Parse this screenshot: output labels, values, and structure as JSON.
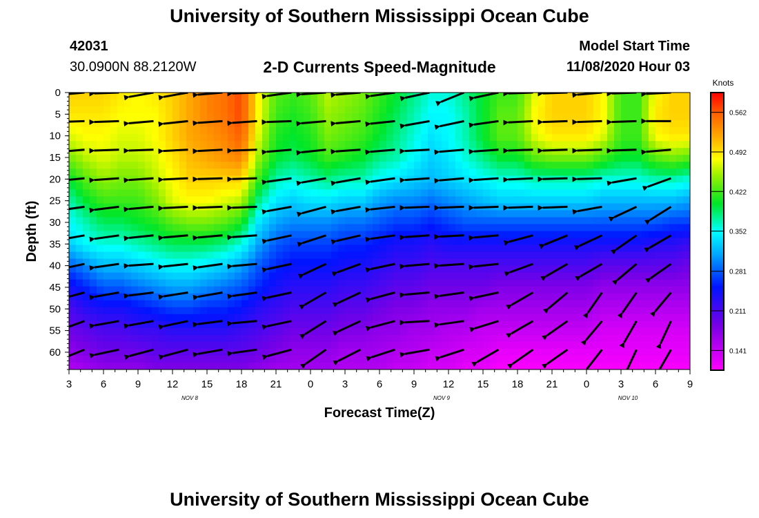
{
  "header": {
    "title": "University of Southern Mississippi Ocean Cube",
    "station_id": "42031",
    "location": "30.0900N 88.2120W",
    "model_start_label": "Model Start Time",
    "model_start_value": "11/08/2020 Hour 03"
  },
  "footer": {
    "title": "University of Southern Mississippi Ocean Cube"
  },
  "chart_data": {
    "type": "heatmap",
    "title": "2-D Currents Speed-Magnitude",
    "xlabel": "Forecast Time(Z)",
    "ylabel": "Depth (ft)",
    "x_tick_labels": [
      "3",
      "6",
      "9",
      "12",
      "15",
      "18",
      "21",
      "0",
      "3",
      "6",
      "9",
      "12",
      "15",
      "18",
      "21",
      "0",
      "3",
      "6",
      "9"
    ],
    "day_labels": [
      {
        "label": "NOV 8",
        "after_tick": 3.5
      },
      {
        "label": "NOV 9",
        "after_tick": 10.8
      },
      {
        "label": "NOV 10",
        "after_tick": 16.2
      }
    ],
    "y_ticks": [
      0,
      5,
      10,
      15,
      20,
      25,
      30,
      35,
      40,
      45,
      50,
      55,
      60
    ],
    "ylim": [
      0,
      64
    ],
    "colorbar": {
      "unit": "Knots",
      "min": 0.106,
      "max": 0.597,
      "tick_values": [
        0.141,
        0.211,
        0.281,
        0.352,
        0.422,
        0.492,
        0.562
      ]
    },
    "depth_rows_ft": [
      0,
      5,
      10,
      15,
      20,
      25,
      30,
      35,
      40,
      45,
      50,
      55,
      60,
      64
    ],
    "time_columns_tick_index": [
      0,
      0.5,
      1,
      1.5,
      2,
      2.5,
      3,
      3.5,
      4,
      4.5,
      5,
      5.5,
      6,
      6.5,
      7,
      7.5,
      8,
      8.5,
      9,
      9.5,
      10,
      10.5,
      11,
      11.5,
      12,
      12.5,
      13,
      13.5,
      14,
      14.5,
      15,
      15.5,
      16,
      16.5,
      17,
      17.5,
      18
    ],
    "speed_knots_grid": [
      [
        0.5,
        0.5,
        0.5,
        0.49,
        0.48,
        0.49,
        0.5,
        0.52,
        0.54,
        0.55,
        0.57,
        0.48,
        0.43,
        0.42,
        0.43,
        0.46,
        0.45,
        0.44,
        0.42,
        0.4,
        0.38,
        0.36,
        0.36,
        0.38,
        0.4,
        0.42,
        0.42,
        0.47,
        0.5,
        0.5,
        0.5,
        0.48,
        0.42,
        0.42,
        0.48,
        0.5,
        0.5
      ],
      [
        0.49,
        0.49,
        0.49,
        0.48,
        0.48,
        0.48,
        0.5,
        0.52,
        0.54,
        0.55,
        0.57,
        0.48,
        0.42,
        0.41,
        0.42,
        0.45,
        0.44,
        0.43,
        0.41,
        0.39,
        0.37,
        0.35,
        0.35,
        0.37,
        0.4,
        0.43,
        0.43,
        0.48,
        0.5,
        0.5,
        0.5,
        0.48,
        0.42,
        0.42,
        0.49,
        0.5,
        0.5
      ],
      [
        0.47,
        0.48,
        0.48,
        0.47,
        0.47,
        0.48,
        0.5,
        0.52,
        0.53,
        0.54,
        0.56,
        0.47,
        0.41,
        0.4,
        0.41,
        0.44,
        0.43,
        0.42,
        0.4,
        0.38,
        0.36,
        0.34,
        0.35,
        0.37,
        0.4,
        0.43,
        0.43,
        0.47,
        0.49,
        0.49,
        0.49,
        0.47,
        0.42,
        0.42,
        0.48,
        0.49,
        0.49
      ],
      [
        0.44,
        0.46,
        0.47,
        0.46,
        0.46,
        0.47,
        0.49,
        0.51,
        0.52,
        0.53,
        0.54,
        0.45,
        0.4,
        0.39,
        0.4,
        0.42,
        0.41,
        0.4,
        0.38,
        0.37,
        0.35,
        0.33,
        0.34,
        0.36,
        0.38,
        0.4,
        0.4,
        0.43,
        0.44,
        0.44,
        0.44,
        0.42,
        0.4,
        0.4,
        0.43,
        0.44,
        0.43
      ],
      [
        0.4,
        0.43,
        0.45,
        0.44,
        0.44,
        0.46,
        0.48,
        0.5,
        0.5,
        0.5,
        0.5,
        0.42,
        0.37,
        0.36,
        0.37,
        0.38,
        0.37,
        0.37,
        0.35,
        0.34,
        0.33,
        0.32,
        0.33,
        0.34,
        0.35,
        0.36,
        0.36,
        0.37,
        0.37,
        0.37,
        0.37,
        0.36,
        0.36,
        0.36,
        0.37,
        0.37,
        0.36
      ],
      [
        0.37,
        0.4,
        0.42,
        0.42,
        0.42,
        0.44,
        0.47,
        0.48,
        0.48,
        0.47,
        0.46,
        0.38,
        0.34,
        0.33,
        0.34,
        0.34,
        0.33,
        0.33,
        0.31,
        0.3,
        0.3,
        0.29,
        0.3,
        0.31,
        0.32,
        0.33,
        0.33,
        0.33,
        0.33,
        0.33,
        0.33,
        0.32,
        0.32,
        0.32,
        0.32,
        0.32,
        0.31
      ],
      [
        0.35,
        0.37,
        0.39,
        0.39,
        0.4,
        0.41,
        0.43,
        0.44,
        0.44,
        0.43,
        0.41,
        0.34,
        0.31,
        0.3,
        0.3,
        0.3,
        0.29,
        0.29,
        0.28,
        0.27,
        0.27,
        0.26,
        0.27,
        0.28,
        0.28,
        0.28,
        0.28,
        0.28,
        0.28,
        0.28,
        0.28,
        0.28,
        0.28,
        0.28,
        0.28,
        0.27,
        0.27
      ],
      [
        0.33,
        0.35,
        0.36,
        0.36,
        0.37,
        0.38,
        0.39,
        0.39,
        0.39,
        0.38,
        0.36,
        0.31,
        0.28,
        0.27,
        0.27,
        0.27,
        0.26,
        0.26,
        0.25,
        0.24,
        0.24,
        0.23,
        0.24,
        0.24,
        0.24,
        0.24,
        0.24,
        0.24,
        0.24,
        0.24,
        0.24,
        0.24,
        0.24,
        0.24,
        0.23,
        0.23,
        0.22
      ],
      [
        0.28,
        0.3,
        0.32,
        0.32,
        0.33,
        0.34,
        0.35,
        0.35,
        0.34,
        0.33,
        0.31,
        0.28,
        0.26,
        0.25,
        0.25,
        0.25,
        0.24,
        0.24,
        0.23,
        0.22,
        0.22,
        0.21,
        0.21,
        0.21,
        0.21,
        0.21,
        0.21,
        0.21,
        0.21,
        0.21,
        0.21,
        0.2,
        0.2,
        0.2,
        0.2,
        0.2,
        0.19
      ],
      [
        0.24,
        0.26,
        0.28,
        0.28,
        0.29,
        0.3,
        0.31,
        0.31,
        0.3,
        0.29,
        0.28,
        0.26,
        0.24,
        0.23,
        0.23,
        0.23,
        0.22,
        0.22,
        0.21,
        0.2,
        0.2,
        0.19,
        0.19,
        0.19,
        0.19,
        0.18,
        0.18,
        0.18,
        0.18,
        0.18,
        0.18,
        0.17,
        0.17,
        0.17,
        0.17,
        0.17,
        0.17
      ],
      [
        0.21,
        0.23,
        0.24,
        0.24,
        0.25,
        0.26,
        0.27,
        0.27,
        0.26,
        0.26,
        0.25,
        0.23,
        0.22,
        0.21,
        0.21,
        0.21,
        0.2,
        0.2,
        0.19,
        0.18,
        0.18,
        0.17,
        0.17,
        0.17,
        0.16,
        0.16,
        0.16,
        0.16,
        0.16,
        0.16,
        0.16,
        0.15,
        0.15,
        0.15,
        0.15,
        0.15,
        0.15
      ],
      [
        0.19,
        0.2,
        0.21,
        0.21,
        0.22,
        0.22,
        0.23,
        0.23,
        0.23,
        0.23,
        0.22,
        0.21,
        0.2,
        0.19,
        0.19,
        0.19,
        0.18,
        0.18,
        0.17,
        0.17,
        0.16,
        0.16,
        0.15,
        0.15,
        0.14,
        0.14,
        0.14,
        0.14,
        0.14,
        0.14,
        0.14,
        0.13,
        0.13,
        0.13,
        0.13,
        0.13,
        0.13
      ],
      [
        0.17,
        0.18,
        0.19,
        0.19,
        0.19,
        0.2,
        0.2,
        0.2,
        0.2,
        0.2,
        0.2,
        0.19,
        0.18,
        0.17,
        0.17,
        0.17,
        0.16,
        0.16,
        0.16,
        0.15,
        0.15,
        0.14,
        0.14,
        0.13,
        0.13,
        0.12,
        0.12,
        0.12,
        0.12,
        0.12,
        0.12,
        0.12,
        0.12,
        0.12,
        0.12,
        0.12,
        0.12
      ],
      [
        0.15,
        0.16,
        0.17,
        0.17,
        0.17,
        0.18,
        0.18,
        0.18,
        0.18,
        0.18,
        0.18,
        0.17,
        0.16,
        0.16,
        0.16,
        0.16,
        0.15,
        0.15,
        0.15,
        0.14,
        0.14,
        0.13,
        0.13,
        0.12,
        0.12,
        0.11,
        0.11,
        0.11,
        0.11,
        0.11,
        0.11,
        0.11,
        0.11,
        0.11,
        0.11,
        0.11,
        0.11
      ]
    ],
    "vector_time_tick_index": [
      0.45,
      1.45,
      2.45,
      3.45,
      4.45,
      5.45,
      6.45,
      7.45,
      8.45,
      9.45,
      10.45,
      11.45,
      12.45,
      13.45,
      14.45,
      15.45,
      16.45,
      17.45
    ],
    "vector_depth_ft": [
      0,
      6.6,
      13.2,
      19.8,
      26.4,
      33,
      39.6,
      46.2,
      52.8,
      59.4
    ],
    "vector_direction_deg": [
      [
        -175,
        -178,
        -170,
        -170,
        -175,
        -178,
        -172,
        -176,
        -175,
        -172,
        -168,
        -158,
        -168,
        -178,
        -178,
        -175,
        -178,
        -177
      ],
      [
        -178,
        -178,
        -175,
        -174,
        -176,
        -176,
        -178,
        -175,
        -175,
        -174,
        -170,
        -168,
        -172,
        -177,
        -178,
        -178,
        -178,
        -180
      ],
      [
        -175,
        -178,
        -178,
        -177,
        -177,
        -178,
        -175,
        -174,
        -176,
        -175,
        -177,
        -175,
        -176,
        -178,
        -178,
        -178,
        -178,
        -175
      ],
      [
        -174,
        -176,
        -176,
        -177,
        -178,
        -178,
        -172,
        -170,
        -170,
        -172,
        -176,
        -175,
        -176,
        -177,
        -178,
        -178,
        -170,
        -160
      ],
      [
        -172,
        -173,
        -175,
        -177,
        -178,
        -178,
        -170,
        -165,
        -170,
        -174,
        -178,
        -178,
        -178,
        -178,
        -178,
        -170,
        -155,
        -148
      ],
      [
        -170,
        -172,
        -174,
        -175,
        -175,
        -176,
        -168,
        -162,
        -167,
        -172,
        -176,
        -177,
        -175,
        -165,
        -158,
        -155,
        -145,
        -150
      ],
      [
        -168,
        -172,
        -176,
        -174,
        -172,
        -175,
        -168,
        -155,
        -160,
        -168,
        -175,
        -176,
        -174,
        -160,
        -150,
        -150,
        -140,
        -145
      ],
      [
        -165,
        -170,
        -173,
        -171,
        -170,
        -172,
        -168,
        -150,
        -155,
        -165,
        -175,
        -172,
        -168,
        -150,
        -140,
        -125,
        -125,
        -130
      ],
      [
        -160,
        -170,
        -170,
        -168,
        -173,
        -175,
        -168,
        -148,
        -155,
        -165,
        -177,
        -172,
        -163,
        -150,
        -145,
        -130,
        -120,
        -115
      ],
      [
        -158,
        -168,
        -165,
        -165,
        -170,
        -172,
        -165,
        -145,
        -153,
        -162,
        -170,
        -162,
        -150,
        -145,
        -145,
        -128,
        -115,
        -120
      ]
    ]
  }
}
